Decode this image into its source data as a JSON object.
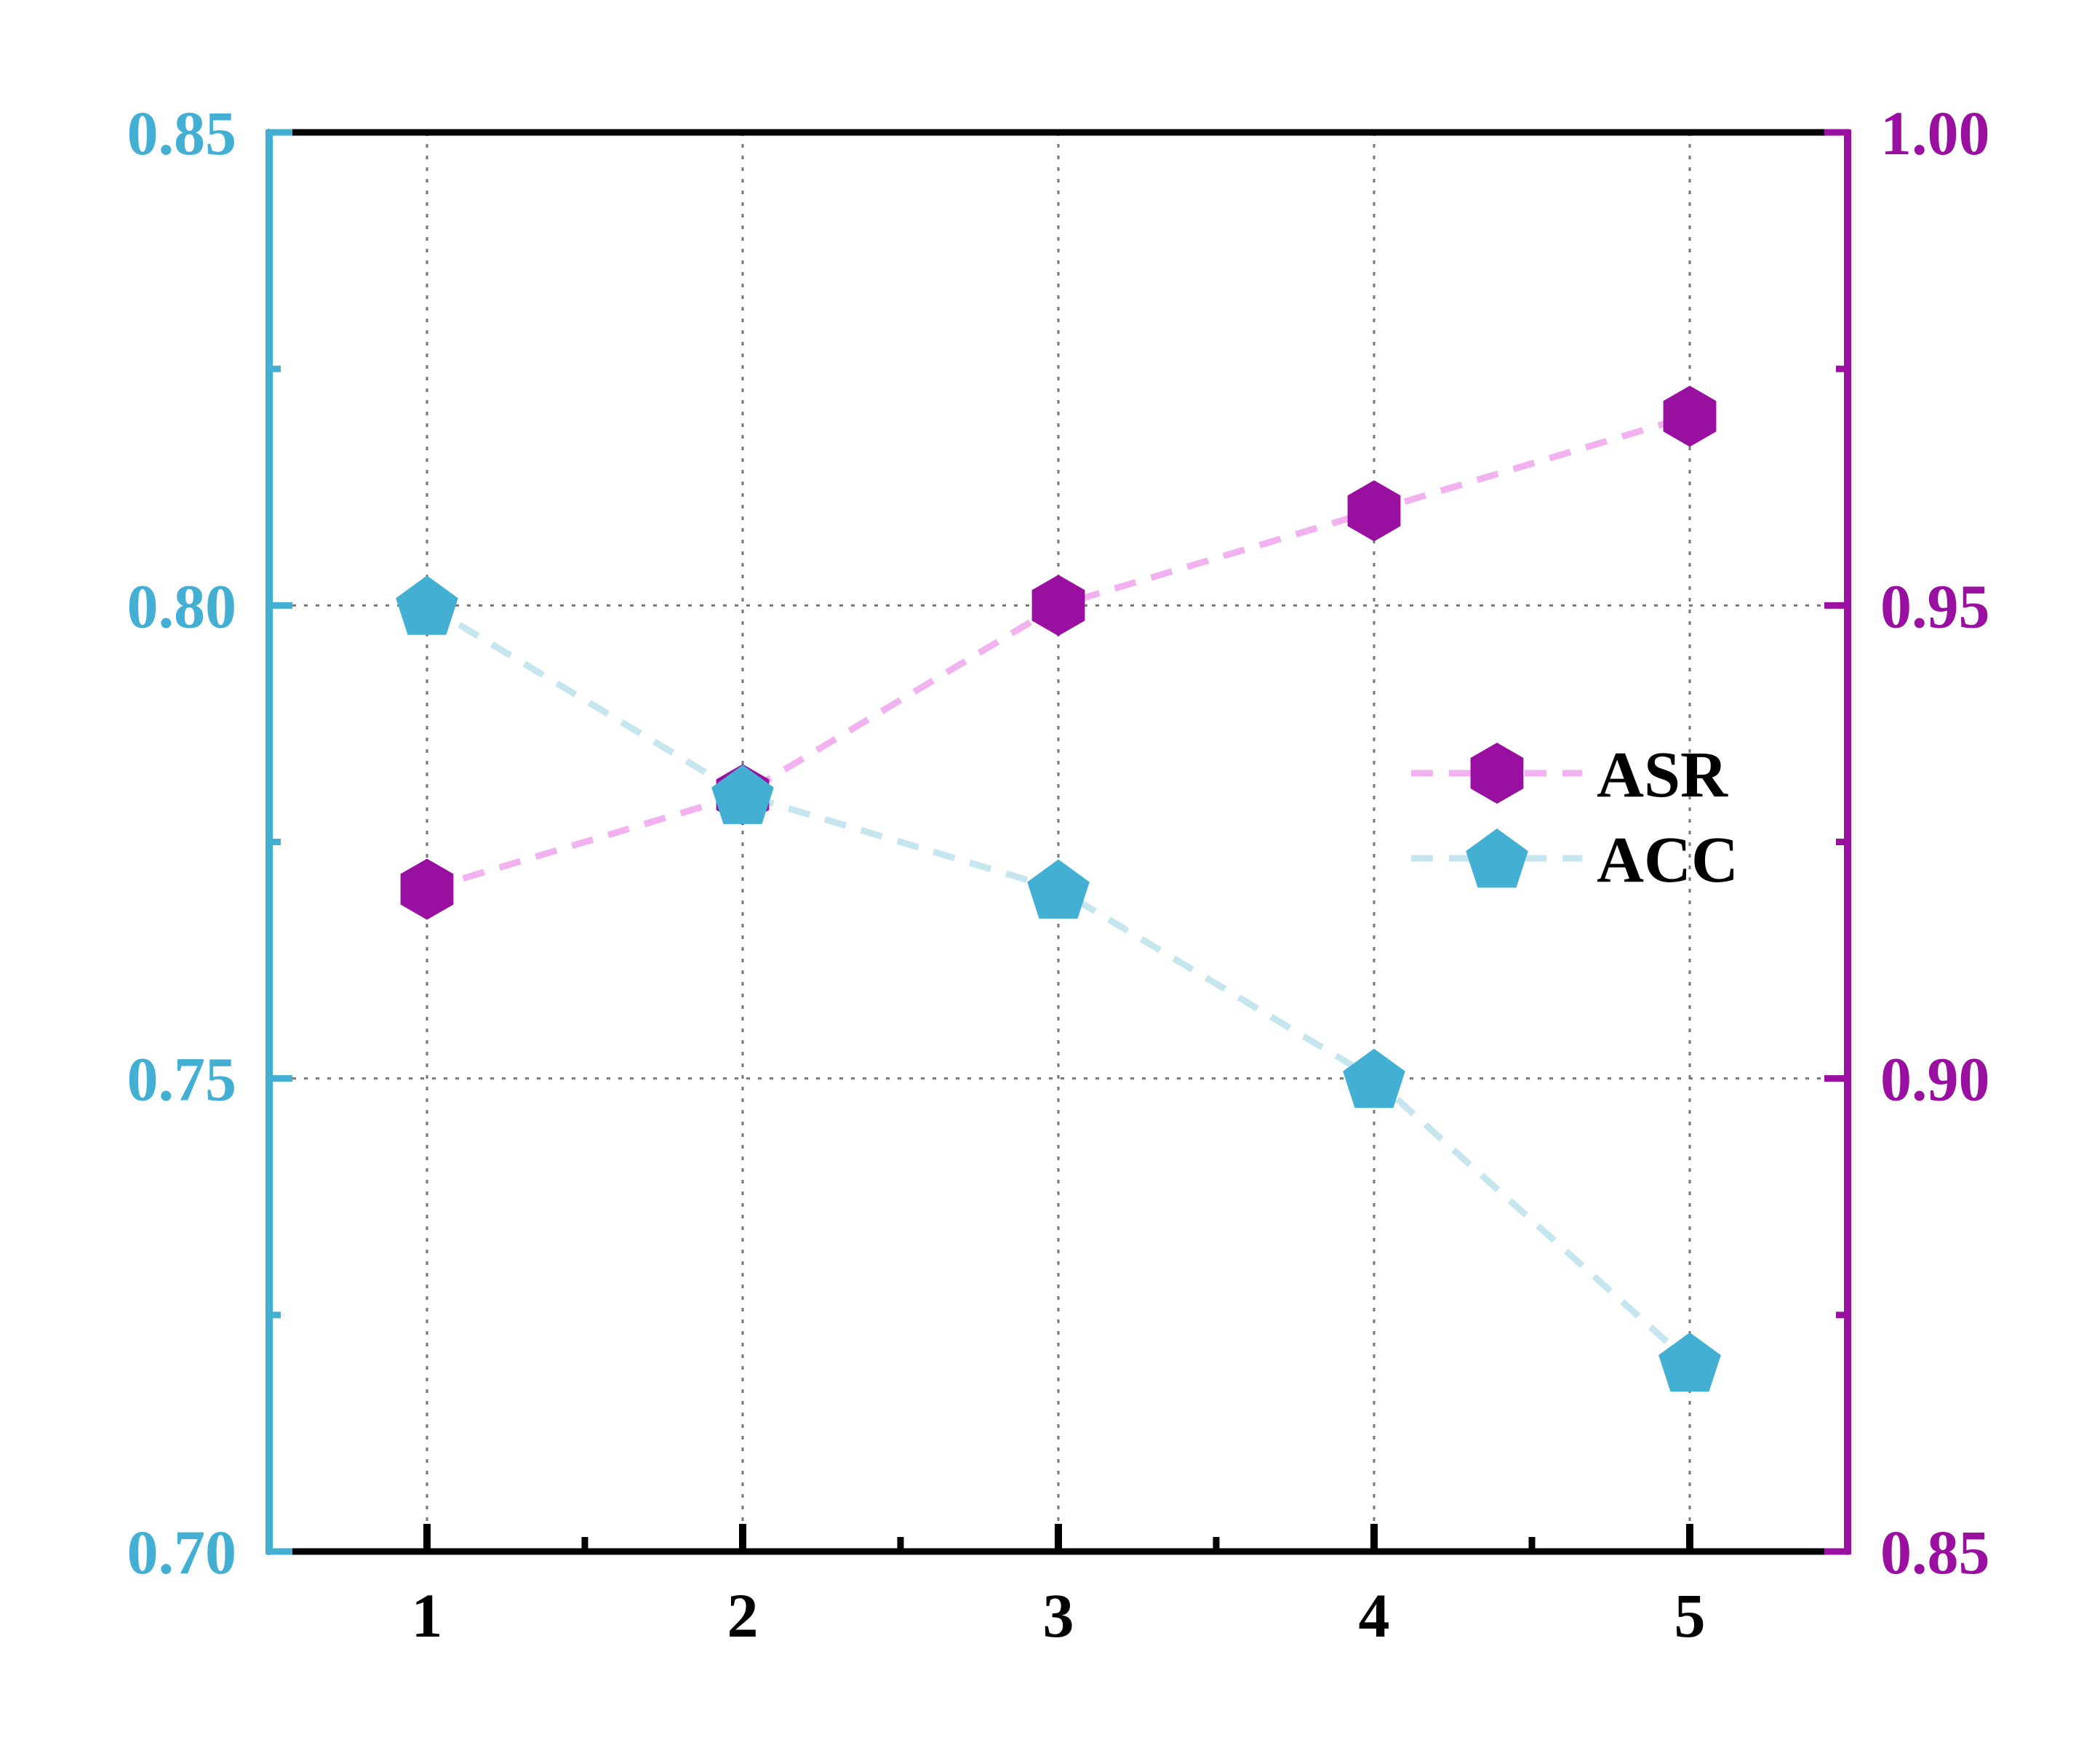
{
  "chart_data": {
    "type": "line",
    "x": [
      1,
      2,
      3,
      4,
      5
    ],
    "x_tick_labels": [
      "1",
      "2",
      "3",
      "4",
      "5"
    ],
    "xlim": [
      0.5,
      5.5
    ],
    "series": [
      {
        "name": "ASR",
        "axis": "right",
        "values": [
          0.92,
          0.93,
          0.95,
          0.96,
          0.97
        ],
        "marker": "hexagon",
        "marker_color": "#990fa0",
        "line_color": "#f2b2f0",
        "line_style": "dashed"
      },
      {
        "name": "ACC",
        "axis": "left",
        "values": [
          0.8,
          0.78,
          0.77,
          0.75,
          0.72
        ],
        "marker": "pentagon",
        "marker_color": "#42afd3",
        "line_color": "#c6e6ef",
        "line_style": "dashed"
      }
    ],
    "y_left": {
      "lim": [
        0.7,
        0.85
      ],
      "tick_labels": [
        "0.70",
        "0.75",
        "0.80",
        "0.85"
      ],
      "color": "#42afd3"
    },
    "y_right": {
      "lim": [
        0.85,
        1.0
      ],
      "tick_labels": [
        "0.85",
        "0.90",
        "0.95",
        "1.00"
      ],
      "color": "#990fa0"
    },
    "grid": true,
    "legend_position": "right"
  }
}
